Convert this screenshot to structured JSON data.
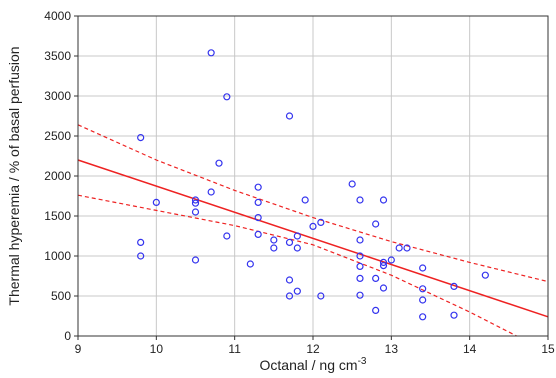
{
  "chart_data": {
    "type": "scatter",
    "xlabel": "Octanal / ng cm",
    "xlabel_sup": "-3",
    "ylabel": "Thermal hyperemia / % of basal perfusion",
    "xlim": [
      9,
      15
    ],
    "ylim": [
      0,
      4000
    ],
    "xticks": [
      9,
      10,
      11,
      12,
      13,
      14,
      15
    ],
    "yticks": [
      0,
      500,
      1000,
      1500,
      2000,
      2500,
      3000,
      3500,
      4000
    ],
    "grid": true,
    "points": [
      {
        "x": 9.8,
        "y": 2480
      },
      {
        "x": 9.8,
        "y": 1170
      },
      {
        "x": 9.8,
        "y": 1000
      },
      {
        "x": 10.0,
        "y": 1670
      },
      {
        "x": 10.5,
        "y": 1700
      },
      {
        "x": 10.5,
        "y": 1660
      },
      {
        "x": 10.5,
        "y": 1550
      },
      {
        "x": 10.5,
        "y": 950
      },
      {
        "x": 10.7,
        "y": 3540
      },
      {
        "x": 10.7,
        "y": 1800
      },
      {
        "x": 10.8,
        "y": 2160
      },
      {
        "x": 10.9,
        "y": 2990
      },
      {
        "x": 10.9,
        "y": 1250
      },
      {
        "x": 11.2,
        "y": 900
      },
      {
        "x": 11.3,
        "y": 1860
      },
      {
        "x": 11.3,
        "y": 1670
      },
      {
        "x": 11.3,
        "y": 1480
      },
      {
        "x": 11.3,
        "y": 1270
      },
      {
        "x": 11.5,
        "y": 1200
      },
      {
        "x": 11.5,
        "y": 1100
      },
      {
        "x": 11.7,
        "y": 2750
      },
      {
        "x": 11.7,
        "y": 1170
      },
      {
        "x": 11.7,
        "y": 700
      },
      {
        "x": 11.7,
        "y": 500
      },
      {
        "x": 11.8,
        "y": 1250
      },
      {
        "x": 11.8,
        "y": 1100
      },
      {
        "x": 11.8,
        "y": 560
      },
      {
        "x": 11.9,
        "y": 1700
      },
      {
        "x": 12.0,
        "y": 1370
      },
      {
        "x": 12.1,
        "y": 1420
      },
      {
        "x": 12.1,
        "y": 500
      },
      {
        "x": 12.5,
        "y": 1900
      },
      {
        "x": 12.6,
        "y": 1700
      },
      {
        "x": 12.6,
        "y": 1200
      },
      {
        "x": 12.6,
        "y": 1000
      },
      {
        "x": 12.6,
        "y": 870
      },
      {
        "x": 12.6,
        "y": 720
      },
      {
        "x": 12.6,
        "y": 510
      },
      {
        "x": 12.8,
        "y": 1400
      },
      {
        "x": 12.8,
        "y": 720
      },
      {
        "x": 12.8,
        "y": 320
      },
      {
        "x": 12.9,
        "y": 1700
      },
      {
        "x": 12.9,
        "y": 920
      },
      {
        "x": 12.9,
        "y": 880
      },
      {
        "x": 12.9,
        "y": 600
      },
      {
        "x": 13.0,
        "y": 950
      },
      {
        "x": 13.1,
        "y": 1100
      },
      {
        "x": 13.2,
        "y": 1100
      },
      {
        "x": 13.4,
        "y": 850
      },
      {
        "x": 13.4,
        "y": 590
      },
      {
        "x": 13.4,
        "y": 450
      },
      {
        "x": 13.4,
        "y": 240
      },
      {
        "x": 13.8,
        "y": 620
      },
      {
        "x": 13.8,
        "y": 260
      },
      {
        "x": 14.2,
        "y": 760
      }
    ],
    "fit_line": {
      "x": [
        9,
        15
      ],
      "y": [
        2200,
        240
      ]
    },
    "ci_upper": {
      "x": [
        9,
        10,
        11,
        12,
        13,
        14,
        15
      ],
      "y": [
        2640,
        2200,
        1820,
        1480,
        1180,
        920,
        680
      ]
    },
    "ci_lower": {
      "x": [
        9,
        10,
        11,
        12,
        13,
        14,
        14.6
      ],
      "y": [
        1760,
        1570,
        1380,
        1140,
        760,
        300,
        0
      ]
    },
    "colors": {
      "points": "#3333ee",
      "fit": "#ee2222",
      "grid": "#c8c8c8",
      "axes": "#333333"
    }
  }
}
